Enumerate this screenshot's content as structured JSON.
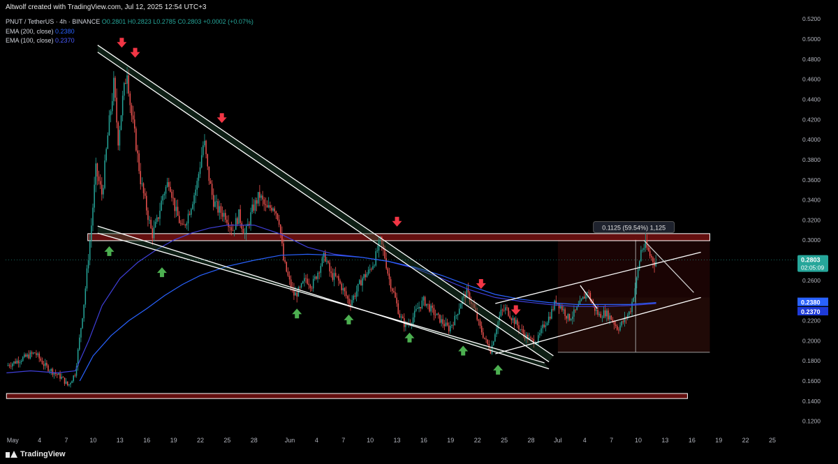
{
  "header": {
    "credit": "Altwolf created with TradingView.com, Jul 12, 2025 12:54 UTC+3",
    "symbol_line": "PNUT / TetherUS · 4h · BINANCE",
    "ohlc": "O0.2801 H0.2823 L0.2785 C0.2803 +0.0002 (+0.07%)",
    "ema200_label": "EMA (200, close)",
    "ema200_value": "0.2380",
    "ema100_label": "EMA (100, close)",
    "ema100_value": "0.2370"
  },
  "footer": {
    "brand": "TradingView"
  },
  "colors": {
    "up": "#26a69a",
    "down": "#ef5350",
    "ema200": "#2962ff",
    "ema100": "#3f3fd8",
    "zone": "#b71c1c",
    "arrow_up": "#4caf50",
    "arrow_down": "#f23645",
    "channel": "#ffffff"
  },
  "chart_data": {
    "type": "candlestick",
    "symbol": "PNUT / TetherUS",
    "timeframe": "4h",
    "exchange": "BINANCE",
    "y_ticks": [
      "0.5200",
      "0.5000",
      "0.4800",
      "0.4600",
      "0.4400",
      "0.4200",
      "0.4000",
      "0.3800",
      "0.3600",
      "0.3400",
      "0.3200",
      "0.3000",
      "0.2800",
      "0.2600",
      "0.2400",
      "0.2200",
      "0.2000",
      "0.1800",
      "0.1600",
      "0.1400",
      "0.1200"
    ],
    "ylim": [
      0.11,
      0.525
    ],
    "x_ticks": [
      {
        "label": "May",
        "day": 1
      },
      {
        "label": "4",
        "day": 4
      },
      {
        "label": "7",
        "day": 7
      },
      {
        "label": "10",
        "day": 10
      },
      {
        "label": "13",
        "day": 13
      },
      {
        "label": "16",
        "day": 16
      },
      {
        "label": "19",
        "day": 19
      },
      {
        "label": "22",
        "day": 22
      },
      {
        "label": "25",
        "day": 25
      },
      {
        "label": "28",
        "day": 28
      },
      {
        "label": "Jun",
        "day": 32
      },
      {
        "label": "4",
        "day": 35
      },
      {
        "label": "7",
        "day": 38
      },
      {
        "label": "10",
        "day": 41
      },
      {
        "label": "13",
        "day": 44
      },
      {
        "label": "16",
        "day": 47
      },
      {
        "label": "19",
        "day": 50
      },
      {
        "label": "22",
        "day": 53
      },
      {
        "label": "25",
        "day": 56
      },
      {
        "label": "28",
        "day": 59
      },
      {
        "label": "Jul",
        "day": 62
      },
      {
        "label": "4",
        "day": 65
      },
      {
        "label": "7",
        "day": 68
      },
      {
        "label": "10",
        "day": 71
      },
      {
        "label": "13",
        "day": 74
      },
      {
        "label": "16",
        "day": 77
      },
      {
        "label": "19",
        "day": 80
      },
      {
        "label": "22",
        "day": 83
      },
      {
        "label": "25",
        "day": 86
      }
    ],
    "xlim": [
      0.2,
      88.5
    ],
    "price_path": [
      [
        0.3,
        0.175
      ],
      [
        2,
        0.182
      ],
      [
        3.5,
        0.188
      ],
      [
        4.5,
        0.176
      ],
      [
        5.5,
        0.169
      ],
      [
        6.5,
        0.163
      ],
      [
        7.2,
        0.155
      ],
      [
        8,
        0.168
      ],
      [
        9,
        0.24
      ],
      [
        9.8,
        0.315
      ],
      [
        10.3,
        0.37
      ],
      [
        11,
        0.345
      ],
      [
        11.7,
        0.41
      ],
      [
        12.3,
        0.455
      ],
      [
        12.8,
        0.4
      ],
      [
        13.3,
        0.44
      ],
      [
        13.8,
        0.47
      ],
      [
        14.2,
        0.43
      ],
      [
        14.8,
        0.395
      ],
      [
        15.3,
        0.36
      ],
      [
        16,
        0.33
      ],
      [
        16.6,
        0.305
      ],
      [
        17.2,
        0.32
      ],
      [
        17.8,
        0.345
      ],
      [
        18.5,
        0.36
      ],
      [
        19.2,
        0.33
      ],
      [
        20,
        0.31
      ],
      [
        20.8,
        0.33
      ],
      [
        21.6,
        0.355
      ],
      [
        22.4,
        0.4
      ],
      [
        22.8,
        0.37
      ],
      [
        23.4,
        0.34
      ],
      [
        24,
        0.33
      ],
      [
        24.8,
        0.325
      ],
      [
        25.6,
        0.31
      ],
      [
        26.3,
        0.325
      ],
      [
        27,
        0.305
      ],
      [
        27.8,
        0.33
      ],
      [
        28.6,
        0.345
      ],
      [
        29.4,
        0.33
      ],
      [
        30.2,
        0.335
      ],
      [
        30.8,
        0.32
      ],
      [
        31.3,
        0.28
      ],
      [
        31.9,
        0.26
      ],
      [
        32.5,
        0.245
      ],
      [
        33.1,
        0.25
      ],
      [
        33.8,
        0.262
      ],
      [
        34.5,
        0.255
      ],
      [
        35.2,
        0.27
      ],
      [
        35.9,
        0.285
      ],
      [
        36.6,
        0.265
      ],
      [
        37.3,
        0.262
      ],
      [
        38,
        0.25
      ],
      [
        38.7,
        0.237
      ],
      [
        39.4,
        0.248
      ],
      [
        40.1,
        0.262
      ],
      [
        40.8,
        0.268
      ],
      [
        41.5,
        0.28
      ],
      [
        42.1,
        0.3
      ],
      [
        42.6,
        0.285
      ],
      [
        43.1,
        0.262
      ],
      [
        43.7,
        0.245
      ],
      [
        44.3,
        0.225
      ],
      [
        44.9,
        0.215
      ],
      [
        45.6,
        0.22
      ],
      [
        46.3,
        0.232
      ],
      [
        47,
        0.24
      ],
      [
        47.7,
        0.232
      ],
      [
        48.4,
        0.225
      ],
      [
        49.1,
        0.218
      ],
      [
        49.8,
        0.212
      ],
      [
        50.5,
        0.222
      ],
      [
        51.2,
        0.24
      ],
      [
        51.8,
        0.248
      ],
      [
        52.5,
        0.235
      ],
      [
        53.2,
        0.215
      ],
      [
        53.9,
        0.2
      ],
      [
        54.5,
        0.19
      ],
      [
        55,
        0.21
      ],
      [
        55.6,
        0.228
      ],
      [
        56.2,
        0.232
      ],
      [
        56.9,
        0.222
      ],
      [
        57.6,
        0.214
      ],
      [
        58.3,
        0.205
      ],
      [
        59,
        0.2
      ],
      [
        59.7,
        0.2
      ],
      [
        60.4,
        0.215
      ],
      [
        61.1,
        0.225
      ],
      [
        61.8,
        0.24
      ],
      [
        62.5,
        0.232
      ],
      [
        63.2,
        0.222
      ],
      [
        63.9,
        0.228
      ],
      [
        64.6,
        0.238
      ],
      [
        65.3,
        0.25
      ],
      [
        65.9,
        0.235
      ],
      [
        66.6,
        0.225
      ],
      [
        67.3,
        0.228
      ],
      [
        68,
        0.222
      ],
      [
        68.7,
        0.212
      ],
      [
        69.4,
        0.22
      ],
      [
        70.1,
        0.23
      ],
      [
        70.8,
        0.26
      ],
      [
        71.3,
        0.29
      ],
      [
        71.8,
        0.295
      ],
      [
        72.3,
        0.285
      ],
      [
        72.8,
        0.278
      ],
      [
        73.1,
        0.28
      ]
    ],
    "ema200": [
      [
        8.5,
        0.16
      ],
      [
        10,
        0.185
      ],
      [
        12,
        0.205
      ],
      [
        14,
        0.22
      ],
      [
        16,
        0.232
      ],
      [
        18,
        0.245
      ],
      [
        20,
        0.256
      ],
      [
        22,
        0.265
      ],
      [
        25,
        0.274
      ],
      [
        28,
        0.28
      ],
      [
        31,
        0.285
      ],
      [
        34,
        0.286
      ],
      [
        37,
        0.285
      ],
      [
        40,
        0.283
      ],
      [
        43,
        0.279
      ],
      [
        46,
        0.273
      ],
      [
        49,
        0.265
      ],
      [
        52,
        0.255
      ],
      [
        55,
        0.246
      ],
      [
        58,
        0.241
      ],
      [
        61,
        0.238
      ],
      [
        64,
        0.236
      ],
      [
        67,
        0.236
      ],
      [
        70,
        0.236
      ],
      [
        73,
        0.238
      ]
    ],
    "ema100": [
      [
        0.3,
        0.168
      ],
      [
        3,
        0.17
      ],
      [
        6,
        0.168
      ],
      [
        8,
        0.17
      ],
      [
        9.5,
        0.2
      ],
      [
        11,
        0.235
      ],
      [
        13,
        0.262
      ],
      [
        15,
        0.278
      ],
      [
        17,
        0.29
      ],
      [
        19,
        0.3
      ],
      [
        21,
        0.307
      ],
      [
        23,
        0.312
      ],
      [
        25,
        0.315
      ],
      [
        28,
        0.315
      ],
      [
        31,
        0.306
      ],
      [
        34,
        0.293
      ],
      [
        37,
        0.286
      ],
      [
        40,
        0.283
      ],
      [
        43,
        0.279
      ],
      [
        46,
        0.272
      ],
      [
        49,
        0.262
      ],
      [
        52,
        0.251
      ],
      [
        55,
        0.243
      ],
      [
        58,
        0.239
      ],
      [
        61,
        0.236
      ],
      [
        64,
        0.234
      ],
      [
        67,
        0.234
      ],
      [
        70,
        0.235
      ],
      [
        73,
        0.237
      ]
    ],
    "resistance_zone": {
      "y1": 0.3065,
      "y2": 0.2995,
      "x1": 9.4,
      "x2": 79
    },
    "support_zone": {
      "y1": 0.1475,
      "y2": 0.1425,
      "x1": 0.3,
      "x2": 76.5
    },
    "measure_box": {
      "label": "0.1125 (59.54%) 1,125",
      "x1": 62,
      "x2": 79,
      "y_top": 0.3005,
      "y_bottom": 0.1885,
      "entry_x": 70.7
    },
    "trendlines": [
      {
        "name": "descending-resistance",
        "p1": [
          10.5,
          0.494
        ],
        "p2": [
          61.5,
          0.185
        ],
        "p1b": [
          10.5,
          0.487
        ],
        "p2b": [
          61,
          0.179
        ]
      },
      {
        "name": "descending-support",
        "p1": [
          10.5,
          0.314
        ],
        "p2": [
          61,
          0.172
        ],
        "p1b": [
          10.5,
          0.307
        ],
        "p2b": [
          60.5,
          0.178
        ]
      },
      {
        "name": "rising-channel-top",
        "p1": [
          55,
          0.237
        ],
        "p2": [
          78,
          0.288
        ]
      },
      {
        "name": "rising-channel-bottom",
        "p1": [
          55,
          0.187
        ],
        "p2": [
          78,
          0.243
        ]
      }
    ],
    "down_arrows": [
      [
        13.2,
        0.495
      ],
      [
        14.7,
        0.485
      ],
      [
        24.4,
        0.42
      ],
      [
        44,
        0.317
      ],
      [
        53.4,
        0.255
      ],
      [
        57.3,
        0.229
      ]
    ],
    "up_arrows": [
      [
        11.8,
        0.294
      ],
      [
        17.7,
        0.273
      ],
      [
        32.8,
        0.232
      ],
      [
        38.6,
        0.226
      ],
      [
        45.4,
        0.208
      ],
      [
        51.4,
        0.195
      ],
      [
        55.3,
        0.176
      ]
    ],
    "last_price": {
      "value": "0.2803",
      "countdown": "02:05:09"
    },
    "ema_labels": [
      {
        "value": "0.2380"
      },
      {
        "value": "0.2370"
      }
    ]
  }
}
